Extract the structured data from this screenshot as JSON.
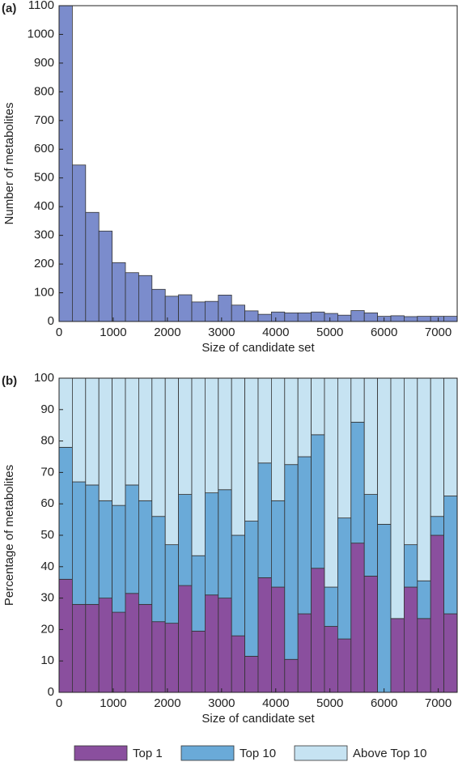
{
  "chart_data": [
    {
      "type": "histogram",
      "panel": "(a)",
      "xlabel": "Size of candidate set",
      "ylabel": "Number of metabolites",
      "color": "#7b8ccc",
      "bins": [
        0,
        245,
        490,
        735,
        980,
        1225,
        1470,
        1715,
        1960,
        2205,
        2450,
        2695,
        2940,
        3185,
        3430,
        3675,
        3920,
        4165,
        4410,
        4655,
        4900,
        5145,
        5390,
        5635,
        5880,
        6125,
        6370,
        6615,
        6860,
        7105,
        7350
      ],
      "values": [
        1100,
        545,
        380,
        315,
        205,
        170,
        160,
        112,
        88,
        93,
        68,
        70,
        92,
        57,
        37,
        25,
        33,
        30,
        30,
        33,
        28,
        22,
        38,
        30,
        18,
        20,
        17,
        18,
        18,
        18
      ],
      "xlim": [
        0,
        7350
      ],
      "xticks": [
        0,
        1000,
        2000,
        3000,
        4000,
        5000,
        6000,
        7000
      ],
      "ylim": [
        0,
        1100
      ],
      "yticks": [
        0,
        100,
        200,
        300,
        400,
        500,
        600,
        700,
        800,
        900,
        1000,
        1100
      ]
    },
    {
      "type": "stacked_histogram",
      "panel": "(b)",
      "xlabel": "Size of candidate set",
      "ylabel": "Percentage of metabolites",
      "bins": [
        0,
        245,
        490,
        735,
        980,
        1225,
        1470,
        1715,
        1960,
        2205,
        2450,
        2695,
        2940,
        3185,
        3430,
        3675,
        3920,
        4165,
        4410,
        4655,
        4900,
        5145,
        5390,
        5635,
        5880,
        6125,
        6370,
        6615,
        6860,
        7105,
        7350
      ],
      "series": [
        {
          "name": "Top 1",
          "color": "#8a4f9e",
          "values": [
            36,
            28,
            28,
            30,
            25.5,
            31.5,
            28,
            22.5,
            22,
            34,
            19.5,
            31,
            30,
            18,
            11.5,
            36.5,
            33.5,
            10.5,
            25,
            39.5,
            21,
            17,
            47.5,
            37,
            0,
            23.5,
            33.5,
            23.5,
            50,
            25
          ]
        },
        {
          "name": "Top 10",
          "color": "#6aaad8",
          "values": [
            42,
            39,
            38,
            31,
            34,
            34.5,
            33,
            33.5,
            25,
            29,
            24,
            32.5,
            34.5,
            32,
            43,
            36.5,
            27.5,
            62,
            50,
            42.5,
            12.5,
            38.5,
            38.5,
            26,
            53.5,
            0,
            13.5,
            12,
            6,
            37.5
          ]
        },
        {
          "name": "Above Top 10",
          "color": "#c6e3f2",
          "values": [
            22,
            33,
            34,
            39,
            40.5,
            34,
            39,
            44,
            53,
            37,
            56.5,
            36.5,
            35.5,
            50,
            45.5,
            27,
            39,
            27.5,
            25,
            18,
            66.5,
            44.5,
            14,
            37,
            46.5,
            76.5,
            53,
            64.5,
            44,
            37.5
          ]
        }
      ],
      "xlim": [
        0,
        7350
      ],
      "xticks": [
        0,
        1000,
        2000,
        3000,
        4000,
        5000,
        6000,
        7000
      ],
      "ylim": [
        0,
        100
      ],
      "yticks": [
        0,
        10,
        20,
        30,
        40,
        50,
        60,
        70,
        80,
        90,
        100
      ]
    }
  ]
}
